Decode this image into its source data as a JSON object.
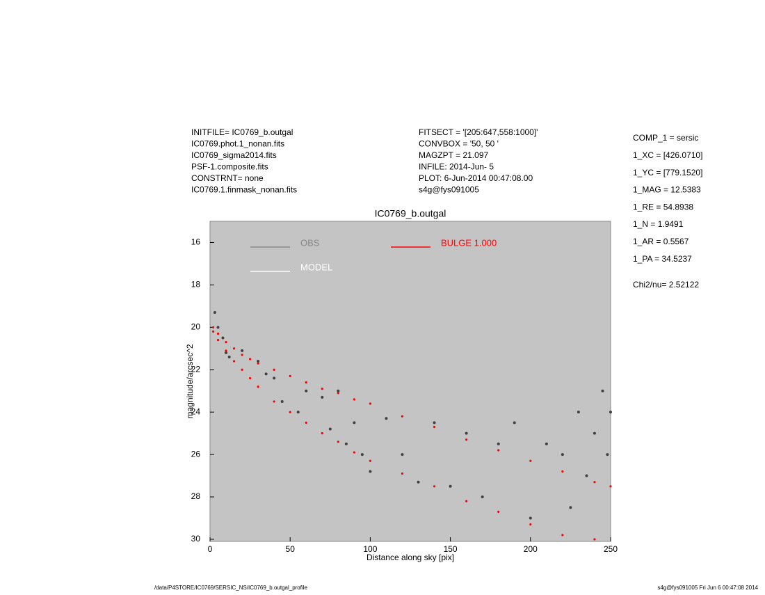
{
  "chart_data": {
    "type": "scatter",
    "title": "IC0769_b.outgal",
    "x_label": "Distance along sky [pix]",
    "y_label": "magnitude/arcsec^2",
    "header_left": [
      "INITFILE= IC0769_b.outgal",
      "IC0769.phot.1_nonan.fits",
      "IC0769_sigma2014.fits",
      "PSF-1.composite.fits",
      "CONSTRNT= none",
      "IC0769.1.finmask_nonan.fits"
    ],
    "header_middle": [
      "FITSECT = '[205:647,558:1000]'",
      "CONVBOX = '50, 50  '",
      "MAGZPT =            21.097",
      "INFILE: 2014-Jun- 5",
      "PLOT:  6-Jun-2014 00:47:08.00",
      "s4g@fys091005"
    ],
    "params": [
      "COMP_1  = sersic",
      "1_XC    = [426.0710]",
      "1_YC    = [779.1520]",
      "1_MAG   = 12.5383",
      "1_RE    = 54.8938",
      "1_N     = 1.9491",
      "1_AR    = 0.5567",
      "1_PA    = 34.5237"
    ],
    "chi2": "Chi2/nu=     2.52122",
    "footer_left": "/data/P4STORE/IC0769/SERSIC_NS/IC0769_b.outgal_profile",
    "footer_right": "s4g@fys091005  Fri Jun  6 00:47:08 2014",
    "xlim": [
      0,
      250
    ],
    "xticks": [
      0,
      50,
      100,
      150,
      200,
      250
    ],
    "ylim": [
      30.1,
      15
    ],
    "yticks": [
      16,
      18,
      20,
      22,
      24,
      26,
      28,
      30
    ],
    "background": "#c4c4c4",
    "series": [
      {
        "name": "OBS",
        "color": "#404040",
        "legend_color": "#888888",
        "x": [
          3,
          5,
          8,
          10,
          12,
          20,
          30,
          35,
          40,
          45,
          55,
          60,
          70,
          75,
          80,
          85,
          90,
          95,
          100,
          110,
          120,
          130,
          140,
          150,
          160,
          170,
          180,
          190,
          200,
          210,
          220,
          225,
          230,
          235,
          240,
          245,
          248,
          250
        ],
        "values": [
          19.3,
          20,
          20.5,
          21.2,
          21.4,
          21.1,
          21.6,
          22.2,
          22.4,
          23.5,
          24,
          23,
          23.3,
          24.8,
          23,
          25.5,
          24.5,
          26,
          26.8,
          24.3,
          26,
          27.3,
          24.5,
          27.5,
          25,
          28,
          25.5,
          24.5,
          29,
          25.5,
          26,
          28.5,
          24,
          27,
          25,
          23,
          26,
          24
        ]
      },
      {
        "name": "MODEL",
        "color": "#ffffff",
        "legend_color": "#ffffff",
        "x": [],
        "values": []
      },
      {
        "name": "BULGE  1.000",
        "color": "#ff0000",
        "legend_color": "#ff0000",
        "x": [
          2,
          2,
          5,
          5,
          10,
          10,
          15,
          15,
          20,
          20,
          25,
          25,
          30,
          30,
          40,
          40,
          50,
          50,
          60,
          60,
          70,
          70,
          80,
          80,
          90,
          90,
          100,
          100,
          120,
          120,
          140,
          140,
          160,
          160,
          180,
          180,
          200,
          200,
          220,
          220,
          240,
          240,
          250
        ],
        "values": [
          20.0,
          20.2,
          20.3,
          20.6,
          20.7,
          21.1,
          21.0,
          21.6,
          21.3,
          22.0,
          21.5,
          22.4,
          21.7,
          22.8,
          22.0,
          23.5,
          22.3,
          24.0,
          22.6,
          24.5,
          22.9,
          25.0,
          23.1,
          25.4,
          23.4,
          25.9,
          23.6,
          26.3,
          24.2,
          26.9,
          24.7,
          27.5,
          25.3,
          28.2,
          25.8,
          28.7,
          26.3,
          29.3,
          26.8,
          29.8,
          27.3,
          30.0,
          27.5
        ]
      }
    ]
  }
}
